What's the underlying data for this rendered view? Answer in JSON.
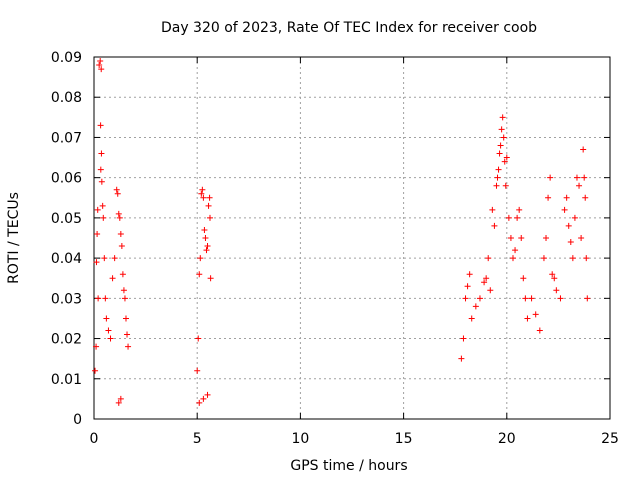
{
  "chart_data": {
    "type": "scatter",
    "title": "Day 320 of 2023, Rate Of TEC Index for receiver coob",
    "xlabel": "GPS time / hours",
    "ylabel": "ROTI / TECUs",
    "xlim": [
      0,
      25
    ],
    "ylim": [
      0,
      0.09
    ],
    "xticks": [
      0,
      5,
      10,
      15,
      20,
      25
    ],
    "xtick_labels": [
      "0",
      "5",
      "10",
      "15",
      "20",
      "25"
    ],
    "yticks": [
      0,
      0.01,
      0.02,
      0.03,
      0.04,
      0.05,
      0.06,
      0.07,
      0.08,
      0.09
    ],
    "ytick_labels": [
      "0",
      "0.01",
      "0.02",
      "0.03",
      "0.04",
      "0.05",
      "0.06",
      "0.07",
      "0.08",
      "0.09"
    ],
    "grid": true,
    "marker": "+",
    "marker_color": "#ff0000",
    "series": [
      {
        "name": "ROTI",
        "points": [
          [
            0.05,
            0.012
          ],
          [
            0.1,
            0.018
          ],
          [
            0.12,
            0.039
          ],
          [
            0.15,
            0.046
          ],
          [
            0.18,
            0.052
          ],
          [
            0.2,
            0.03
          ],
          [
            0.25,
            0.088
          ],
          [
            0.3,
            0.089
          ],
          [
            0.35,
            0.087
          ],
          [
            0.32,
            0.073
          ],
          [
            0.36,
            0.066
          ],
          [
            0.33,
            0.062
          ],
          [
            0.38,
            0.059
          ],
          [
            0.42,
            0.053
          ],
          [
            0.45,
            0.05
          ],
          [
            0.5,
            0.04
          ],
          [
            0.55,
            0.03
          ],
          [
            0.6,
            0.025
          ],
          [
            0.7,
            0.022
          ],
          [
            0.8,
            0.02
          ],
          [
            0.9,
            0.035
          ],
          [
            1.0,
            0.04
          ],
          [
            1.1,
            0.057
          ],
          [
            1.15,
            0.056
          ],
          [
            1.2,
            0.051
          ],
          [
            1.25,
            0.05
          ],
          [
            1.3,
            0.046
          ],
          [
            1.35,
            0.043
          ],
          [
            1.4,
            0.036
          ],
          [
            1.45,
            0.032
          ],
          [
            1.5,
            0.03
          ],
          [
            1.55,
            0.025
          ],
          [
            1.6,
            0.021
          ],
          [
            1.65,
            0.018
          ],
          [
            1.2,
            0.004
          ],
          [
            1.3,
            0.005
          ],
          [
            5.0,
            0.012
          ],
          [
            5.05,
            0.02
          ],
          [
            5.1,
            0.036
          ],
          [
            5.15,
            0.04
          ],
          [
            5.2,
            0.056
          ],
          [
            5.25,
            0.057
          ],
          [
            5.3,
            0.055
          ],
          [
            5.35,
            0.047
          ],
          [
            5.4,
            0.045
          ],
          [
            5.45,
            0.042
          ],
          [
            5.5,
            0.043
          ],
          [
            5.55,
            0.053
          ],
          [
            5.6,
            0.055
          ],
          [
            5.62,
            0.05
          ],
          [
            5.65,
            0.035
          ],
          [
            5.1,
            0.004
          ],
          [
            5.3,
            0.005
          ],
          [
            5.5,
            0.006
          ],
          [
            17.8,
            0.015
          ],
          [
            17.9,
            0.02
          ],
          [
            18.0,
            0.03
          ],
          [
            18.1,
            0.033
          ],
          [
            18.2,
            0.036
          ],
          [
            18.3,
            0.025
          ],
          [
            18.5,
            0.028
          ],
          [
            18.7,
            0.03
          ],
          [
            18.9,
            0.034
          ],
          [
            19.0,
            0.035
          ],
          [
            19.1,
            0.04
          ],
          [
            19.2,
            0.032
          ],
          [
            19.3,
            0.052
          ],
          [
            19.4,
            0.048
          ],
          [
            19.5,
            0.058
          ],
          [
            19.55,
            0.06
          ],
          [
            19.6,
            0.062
          ],
          [
            19.65,
            0.066
          ],
          [
            19.7,
            0.068
          ],
          [
            19.75,
            0.072
          ],
          [
            19.8,
            0.075
          ],
          [
            19.85,
            0.07
          ],
          [
            19.9,
            0.064
          ],
          [
            19.95,
            0.058
          ],
          [
            20.0,
            0.065
          ],
          [
            20.1,
            0.05
          ],
          [
            20.2,
            0.045
          ],
          [
            20.3,
            0.04
          ],
          [
            20.4,
            0.042
          ],
          [
            20.5,
            0.05
          ],
          [
            20.6,
            0.052
          ],
          [
            20.7,
            0.045
          ],
          [
            20.8,
            0.035
          ],
          [
            20.9,
            0.03
          ],
          [
            21.0,
            0.025
          ],
          [
            21.2,
            0.03
          ],
          [
            21.4,
            0.026
          ],
          [
            21.6,
            0.022
          ],
          [
            21.8,
            0.04
          ],
          [
            21.9,
            0.045
          ],
          [
            22.0,
            0.055
          ],
          [
            22.1,
            0.06
          ],
          [
            22.2,
            0.036
          ],
          [
            22.3,
            0.035
          ],
          [
            22.4,
            0.032
          ],
          [
            22.6,
            0.03
          ],
          [
            22.8,
            0.052
          ],
          [
            22.9,
            0.055
          ],
          [
            23.0,
            0.048
          ],
          [
            23.1,
            0.044
          ],
          [
            23.2,
            0.04
          ],
          [
            23.3,
            0.05
          ],
          [
            23.4,
            0.06
          ],
          [
            23.5,
            0.058
          ],
          [
            23.6,
            0.045
          ],
          [
            23.7,
            0.067
          ],
          [
            23.75,
            0.06
          ],
          [
            23.8,
            0.055
          ],
          [
            23.85,
            0.04
          ],
          [
            23.9,
            0.03
          ]
        ]
      }
    ]
  }
}
